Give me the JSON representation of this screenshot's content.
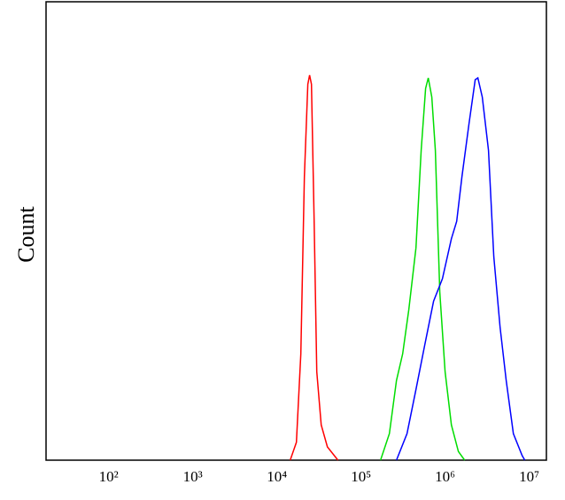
{
  "chart_data": {
    "type": "line",
    "y_label": "Count",
    "xscale": "log",
    "xlim": [
      18,
      16000000
    ],
    "ylim": [
      0,
      100
    ],
    "xticks": [
      {
        "value": 100,
        "label": "10²"
      },
      {
        "value": 1000,
        "label": "10³"
      },
      {
        "value": 10000,
        "label": "10⁴"
      },
      {
        "value": 100000,
        "label": "10⁵"
      },
      {
        "value": 1000000,
        "label": "10⁶"
      },
      {
        "value": 10000000,
        "label": "10⁷"
      }
    ],
    "series": [
      {
        "color": "#ff0000",
        "x": [
          14380,
          17060,
          19250,
          21200,
          23330,
          24490,
          25750,
          27700,
          29790,
          33600,
          39810,
          53200
        ],
        "values": [
          0,
          3.9,
          23.2,
          61.8,
          82,
          84,
          82,
          52.5,
          19.3,
          7.7,
          2.9,
          0
        ]
      },
      {
        "color": "#00dd00",
        "x": [
          170600,
          217300,
          263700,
          312600,
          370000,
          449600,
          519600,
          586500,
          631000,
          695000,
          765600,
          864700,
          1000000,
          1186000,
          1439000,
          1706000
        ],
        "values": [
          0,
          5.8,
          17.4,
          23.2,
          32.8,
          46.3,
          67.6,
          81.1,
          83.4,
          79.2,
          67.6,
          36.7,
          19.3,
          7.7,
          1.9,
          0
        ]
      },
      {
        "color": "#0000ff",
        "x": [
          263700,
          352400,
          449600,
          572700,
          729800,
          929700,
          1186000,
          1371000,
          1585000,
          1923000,
          2280000,
          2449000,
          2767000,
          3281000,
          3793000,
          4498000,
          5323000,
          6471000,
          8240000,
          8851000
        ],
        "values": [
          0,
          5.8,
          15.4,
          25.1,
          34.7,
          39.6,
          48.3,
          52.1,
          61.8,
          73.4,
          83,
          83.4,
          79.2,
          67.6,
          44.4,
          29,
          17.4,
          5.8,
          1,
          0
        ]
      }
    ]
  }
}
